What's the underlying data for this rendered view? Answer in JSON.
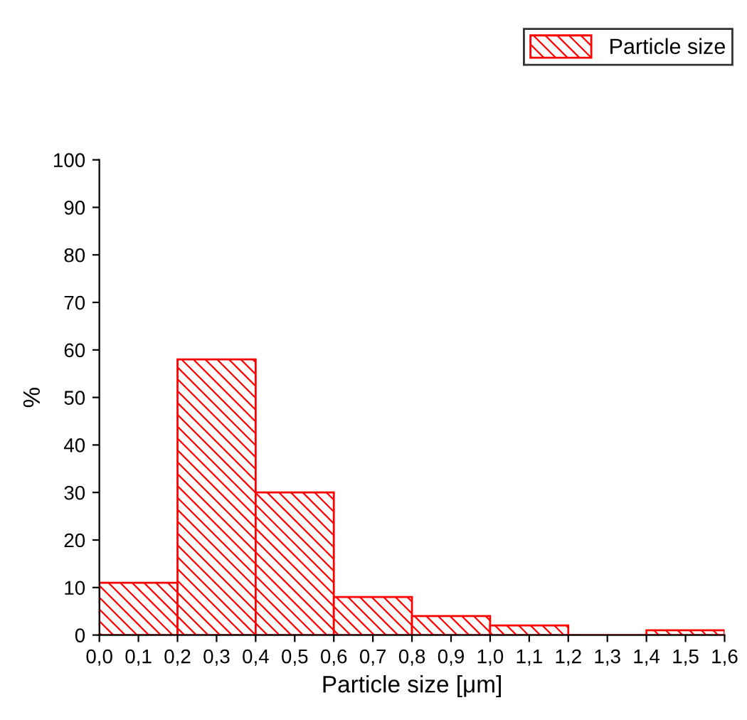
{
  "chart_data": {
    "type": "histogram",
    "xlabel": "Particle size [μm]",
    "ylabel": "%",
    "bins": [
      0.0,
      0.2,
      0.4,
      0.6,
      0.8,
      1.0,
      1.2,
      1.4,
      1.6
    ],
    "series": [
      {
        "name": "Particle size",
        "color": "#ff0000",
        "values": [
          11,
          58,
          30,
          8,
          4,
          2,
          0,
          1
        ]
      }
    ],
    "xlim": [
      0.0,
      1.6
    ],
    "xticks": [
      {
        "value": 0.0,
        "label": "0,0"
      },
      {
        "value": 0.1,
        "label": "0,1"
      },
      {
        "value": 0.2,
        "label": "0,2"
      },
      {
        "value": 0.3,
        "label": "0,3"
      },
      {
        "value": 0.4,
        "label": "0,4"
      },
      {
        "value": 0.5,
        "label": "0,5"
      },
      {
        "value": 0.6,
        "label": "0,6"
      },
      {
        "value": 0.7,
        "label": "0,7"
      },
      {
        "value": 0.8,
        "label": "0,8"
      },
      {
        "value": 0.9,
        "label": "0,9"
      },
      {
        "value": 1.0,
        "label": "1,0"
      },
      {
        "value": 1.1,
        "label": "1,1"
      },
      {
        "value": 1.2,
        "label": "1,2"
      },
      {
        "value": 1.3,
        "label": "1,3"
      },
      {
        "value": 1.4,
        "label": "1,4"
      },
      {
        "value": 1.5,
        "label": "1,5"
      },
      {
        "value": 1.6,
        "label": "1,6"
      }
    ],
    "ylim": [
      0,
      100
    ],
    "yticks": [
      0,
      10,
      20,
      30,
      40,
      50,
      60,
      70,
      80,
      90,
      100
    ],
    "grid": false,
    "legend": "top right"
  }
}
